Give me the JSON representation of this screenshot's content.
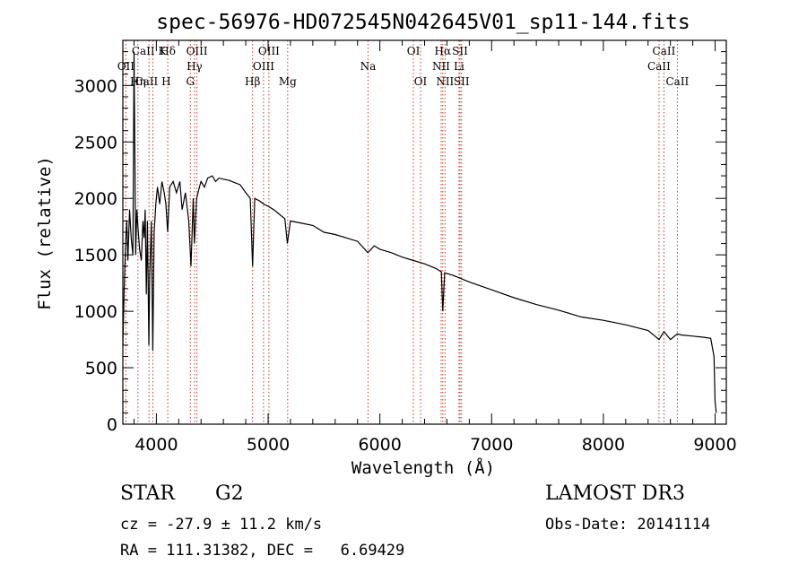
{
  "chart_data": {
    "type": "line",
    "title": "spec-56976-HD072545N042645V01_sp11-144.fits",
    "xlabel": "Wavelength (Å)",
    "ylabel": "Flux (relative)",
    "xlim": [
      3700,
      9100
    ],
    "ylim": [
      0,
      3400
    ],
    "x_ticks": [
      4000,
      5000,
      6000,
      7000,
      8000,
      9000
    ],
    "y_ticks": [
      0,
      500,
      1000,
      1500,
      2000,
      2500,
      3000
    ],
    "series": [
      {
        "name": "flux",
        "x": [
          3700,
          3712,
          3725,
          3735,
          3745,
          3760,
          3775,
          3790,
          3800,
          3815,
          3825,
          3835,
          3850,
          3865,
          3880,
          3890,
          3900,
          3910,
          3920,
          3933,
          3940,
          3955,
          3968,
          3980,
          3995,
          4010,
          4030,
          4050,
          4070,
          4085,
          4101,
          4120,
          4150,
          4180,
          4210,
          4230,
          4260,
          4290,
          4310,
          4330,
          4340,
          4360,
          4385,
          4400,
          4430,
          4460,
          4500,
          4530,
          4560,
          4600,
          4650,
          4700,
          4750,
          4800,
          4840,
          4861,
          4880,
          4920,
          4960,
          5000,
          5050,
          5100,
          5150,
          5172,
          5200,
          5300,
          5400,
          5500,
          5600,
          5700,
          5800,
          5893,
          5950,
          6000,
          6100,
          6200,
          6300,
          6400,
          6500,
          6550,
          6563,
          6580,
          6650,
          6800,
          7000,
          7200,
          7400,
          7600,
          7800,
          8000,
          8200,
          8400,
          8498,
          8542,
          8600,
          8662,
          8700,
          8800,
          8900,
          8960,
          8990,
          9000,
          9010
        ],
        "y": [
          700,
          1200,
          1600,
          1800,
          1450,
          1900,
          1650,
          1500,
          3300,
          1500,
          1900,
          1750,
          1550,
          1450,
          1800,
          1650,
          1900,
          1150,
          1800,
          700,
          1300,
          1800,
          650,
          1700,
          1950,
          2100,
          1950,
          2150,
          2050,
          1950,
          1700,
          2100,
          2150,
          2050,
          2150,
          1900,
          2050,
          1800,
          1400,
          2000,
          1600,
          2000,
          2100,
          2150,
          2100,
          2180,
          2200,
          2150,
          2180,
          2170,
          2160,
          2140,
          2120,
          2050,
          2000,
          1400,
          2000,
          1980,
          1950,
          1930,
          1900,
          1860,
          1820,
          1600,
          1800,
          1780,
          1760,
          1700,
          1680,
          1650,
          1620,
          1520,
          1580,
          1550,
          1520,
          1480,
          1450,
          1420,
          1380,
          1350,
          1000,
          1340,
          1320,
          1260,
          1190,
          1120,
          1060,
          1010,
          950,
          920,
          880,
          830,
          750,
          820,
          750,
          800,
          790,
          780,
          770,
          760,
          600,
          200,
          100
        ]
      }
    ],
    "spectral_lines": [
      {
        "name": "OII",
        "wavelength": 3727,
        "row": 2
      },
      {
        "name": "Hη",
        "wavelength": 3835,
        "row": 3
      },
      {
        "name": "CaII K",
        "wavelength": 3934,
        "row": 1
      },
      {
        "name": "CaII H",
        "wavelength": 3969,
        "row": 3
      },
      {
        "name": "Hδ",
        "wavelength": 4102,
        "row": 1
      },
      {
        "name": "G",
        "wavelength": 4304,
        "row": 3
      },
      {
        "name": "Hγ",
        "wavelength": 4341,
        "row": 2
      },
      {
        "name": "OIII",
        "wavelength": 4363,
        "row": 1
      },
      {
        "name": "Hβ",
        "wavelength": 4861,
        "row": 3
      },
      {
        "name": "OIII",
        "wavelength": 4959,
        "row": 2
      },
      {
        "name": "OIII",
        "wavelength": 5007,
        "row": 1
      },
      {
        "name": "Mg",
        "wavelength": 5175,
        "row": 3
      },
      {
        "name": "Na",
        "wavelength": 5894,
        "row": 2
      },
      {
        "name": "OI",
        "wavelength": 6300,
        "row": 1
      },
      {
        "name": "OI",
        "wavelength": 6364,
        "row": 3
      },
      {
        "name": "NII",
        "wavelength": 6548,
        "row": 2
      },
      {
        "name": "Hα",
        "wavelength": 6563,
        "row": 1
      },
      {
        "name": "NII",
        "wavelength": 6583,
        "row": 3
      },
      {
        "name": "Li",
        "wavelength": 6708,
        "row": 2
      },
      {
        "name": "SII",
        "wavelength": 6717,
        "row": 1
      },
      {
        "name": "SII",
        "wavelength": 6731,
        "row": 3
      },
      {
        "name": "CaII",
        "wavelength": 8498,
        "row": 2
      },
      {
        "name": "CaII",
        "wavelength": 8542,
        "row": 1
      },
      {
        "name": "CaII",
        "wavelength": 8662,
        "row": 3
      }
    ],
    "line_label_texts": {
      "row1": [
        "Hθ",
        "K",
        "Hδ",
        "OIII",
        "OIII",
        "OI",
        "Hα",
        "SII",
        "CaII"
      ],
      "row2": [
        "OII",
        "He",
        "SII",
        "Hγ",
        "OIII",
        "Na",
        "NII",
        "Li",
        "CaII"
      ],
      "row3": [
        "OII",
        "Hη",
        "H",
        "G",
        "Hβ",
        "Mg",
        "OI",
        "NII",
        "SII",
        "CaII"
      ]
    }
  },
  "info": {
    "object_type": "STAR",
    "subclass": "G2",
    "survey": "LAMOST DR3",
    "redshift": "cz = -27.9 ± 11.2 km/s",
    "obs_date": "Obs-Date: 20141114",
    "coords": "RA = 111.31382, DEC =   6.69429"
  }
}
